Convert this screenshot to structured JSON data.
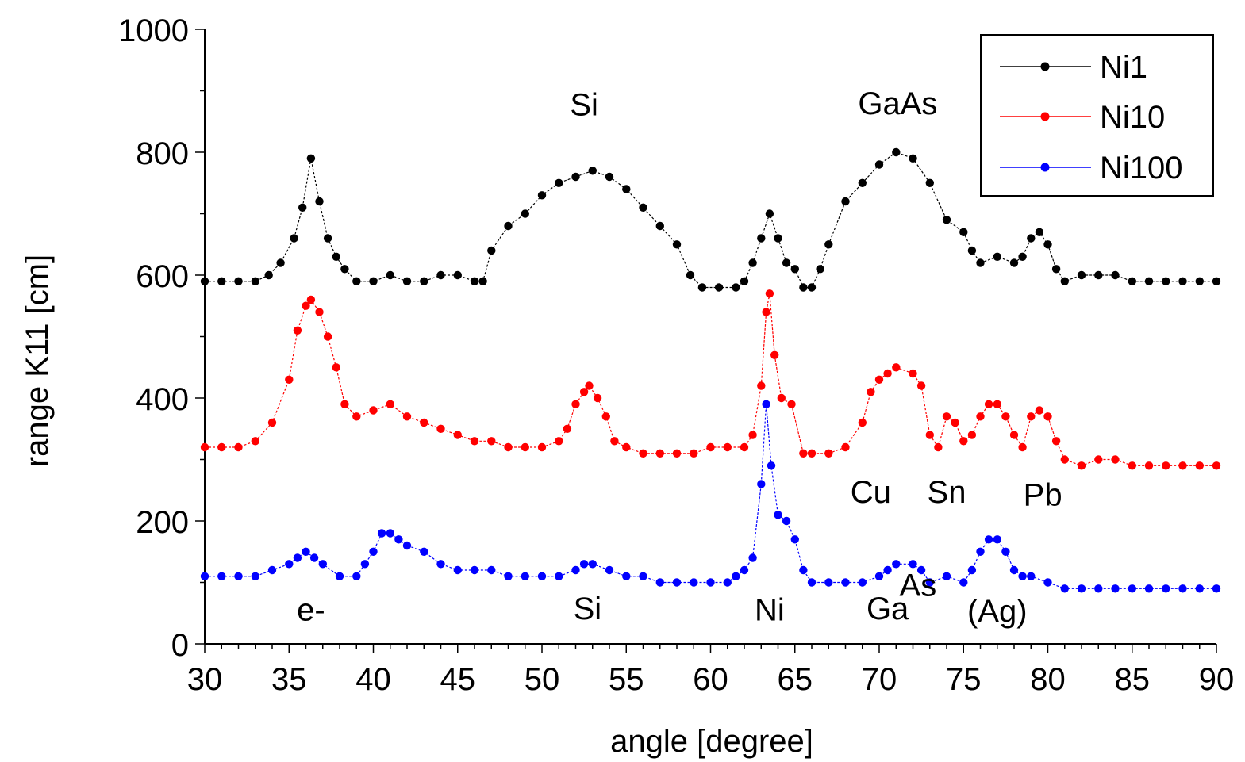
{
  "chart_data": {
    "type": "line",
    "title": "",
    "xlabel": "angle [degree]",
    "ylabel": "range K11 [cm]",
    "xlim": [
      30,
      90
    ],
    "ylim": [
      0,
      1000
    ],
    "xticks": [
      "30",
      "35",
      "40",
      "45",
      "50",
      "55",
      "60",
      "65",
      "70",
      "75",
      "80",
      "85",
      "90"
    ],
    "yticks": [
      "0",
      "200",
      "400",
      "600",
      "800",
      "1000"
    ],
    "grid": false,
    "legend_position": "top-right",
    "series": [
      {
        "name": "Ni1",
        "color": "#000000",
        "points": [
          [
            30,
            590
          ],
          [
            31,
            590
          ],
          [
            32,
            590
          ],
          [
            33,
            590
          ],
          [
            33.8,
            600
          ],
          [
            34.5,
            620
          ],
          [
            35.3,
            660
          ],
          [
            35.8,
            710
          ],
          [
            36.3,
            790
          ],
          [
            36.8,
            720
          ],
          [
            37.3,
            660
          ],
          [
            37.8,
            630
          ],
          [
            38.3,
            610
          ],
          [
            39,
            590
          ],
          [
            40,
            590
          ],
          [
            41,
            600
          ],
          [
            42,
            590
          ],
          [
            43,
            590
          ],
          [
            44,
            600
          ],
          [
            45,
            600
          ],
          [
            46,
            590
          ],
          [
            46.5,
            590
          ],
          [
            47,
            640
          ],
          [
            48,
            680
          ],
          [
            49,
            700
          ],
          [
            50,
            730
          ],
          [
            51,
            750
          ],
          [
            52,
            760
          ],
          [
            53,
            770
          ],
          [
            54,
            760
          ],
          [
            55,
            740
          ],
          [
            56,
            710
          ],
          [
            57,
            680
          ],
          [
            58,
            650
          ],
          [
            58.8,
            600
          ],
          [
            59.5,
            580
          ],
          [
            60.5,
            580
          ],
          [
            61.5,
            580
          ],
          [
            62,
            590
          ],
          [
            62.5,
            620
          ],
          [
            63,
            660
          ],
          [
            63.5,
            700
          ],
          [
            64,
            660
          ],
          [
            64.5,
            620
          ],
          [
            65,
            610
          ],
          [
            65.5,
            580
          ],
          [
            66,
            580
          ],
          [
            66.5,
            610
          ],
          [
            67,
            650
          ],
          [
            68,
            720
          ],
          [
            69,
            750
          ],
          [
            70,
            780
          ],
          [
            71,
            800
          ],
          [
            72,
            790
          ],
          [
            73,
            750
          ],
          [
            74,
            690
          ],
          [
            75,
            670
          ],
          [
            75.5,
            640
          ],
          [
            76,
            620
          ],
          [
            77,
            630
          ],
          [
            78,
            620
          ],
          [
            78.5,
            630
          ],
          [
            79,
            660
          ],
          [
            79.5,
            670
          ],
          [
            80,
            650
          ],
          [
            80.5,
            610
          ],
          [
            81,
            590
          ],
          [
            82,
            600
          ],
          [
            83,
            600
          ],
          [
            84,
            600
          ],
          [
            85,
            590
          ],
          [
            86,
            590
          ],
          [
            87,
            590
          ],
          [
            88,
            590
          ],
          [
            89,
            590
          ],
          [
            90,
            590
          ]
        ]
      },
      {
        "name": "Ni10",
        "color": "#ff0000",
        "points": [
          [
            30,
            320
          ],
          [
            31,
            320
          ],
          [
            32,
            320
          ],
          [
            33,
            330
          ],
          [
            34,
            360
          ],
          [
            35,
            430
          ],
          [
            35.5,
            510
          ],
          [
            36,
            550
          ],
          [
            36.3,
            560
          ],
          [
            36.8,
            540
          ],
          [
            37.3,
            500
          ],
          [
            37.8,
            450
          ],
          [
            38.3,
            390
          ],
          [
            39,
            370
          ],
          [
            40,
            380
          ],
          [
            41,
            390
          ],
          [
            42,
            370
          ],
          [
            43,
            360
          ],
          [
            44,
            350
          ],
          [
            45,
            340
          ],
          [
            46,
            330
          ],
          [
            47,
            330
          ],
          [
            48,
            320
          ],
          [
            49,
            320
          ],
          [
            50,
            320
          ],
          [
            51,
            330
          ],
          [
            51.5,
            350
          ],
          [
            52,
            390
          ],
          [
            52.5,
            410
          ],
          [
            52.8,
            420
          ],
          [
            53.3,
            400
          ],
          [
            53.8,
            370
          ],
          [
            54.3,
            330
          ],
          [
            55,
            320
          ],
          [
            56,
            310
          ],
          [
            57,
            310
          ],
          [
            58,
            310
          ],
          [
            59,
            310
          ],
          [
            60,
            320
          ],
          [
            61,
            320
          ],
          [
            62,
            320
          ],
          [
            62.5,
            340
          ],
          [
            63,
            420
          ],
          [
            63.3,
            540
          ],
          [
            63.5,
            570
          ],
          [
            63.8,
            470
          ],
          [
            64.2,
            400
          ],
          [
            64.8,
            390
          ],
          [
            65.5,
            310
          ],
          [
            66,
            310
          ],
          [
            67,
            310
          ],
          [
            68,
            320
          ],
          [
            69,
            360
          ],
          [
            69.5,
            410
          ],
          [
            70,
            430
          ],
          [
            70.5,
            440
          ],
          [
            71,
            450
          ],
          [
            72,
            440
          ],
          [
            72.5,
            420
          ],
          [
            73,
            340
          ],
          [
            73.5,
            320
          ],
          [
            74,
            370
          ],
          [
            74.5,
            360
          ],
          [
            75,
            330
          ],
          [
            75.5,
            340
          ],
          [
            76,
            370
          ],
          [
            76.5,
            390
          ],
          [
            77,
            390
          ],
          [
            77.5,
            370
          ],
          [
            78,
            340
          ],
          [
            78.5,
            320
          ],
          [
            79,
            370
          ],
          [
            79.5,
            380
          ],
          [
            80,
            370
          ],
          [
            80.5,
            330
          ],
          [
            81,
            300
          ],
          [
            82,
            290
          ],
          [
            83,
            300
          ],
          [
            84,
            300
          ],
          [
            85,
            290
          ],
          [
            86,
            290
          ],
          [
            87,
            290
          ],
          [
            88,
            290
          ],
          [
            89,
            290
          ],
          [
            90,
            290
          ]
        ]
      },
      {
        "name": "Ni100",
        "color": "#0000ff",
        "points": [
          [
            30,
            110
          ],
          [
            31,
            110
          ],
          [
            32,
            110
          ],
          [
            33,
            110
          ],
          [
            34,
            120
          ],
          [
            35,
            130
          ],
          [
            35.5,
            140
          ],
          [
            36,
            150
          ],
          [
            36.5,
            140
          ],
          [
            37,
            130
          ],
          [
            38,
            110
          ],
          [
            39,
            110
          ],
          [
            39.5,
            130
          ],
          [
            40,
            150
          ],
          [
            40.5,
            180
          ],
          [
            41,
            180
          ],
          [
            41.5,
            170
          ],
          [
            42,
            160
          ],
          [
            43,
            150
          ],
          [
            44,
            130
          ],
          [
            45,
            120
          ],
          [
            46,
            120
          ],
          [
            47,
            120
          ],
          [
            48,
            110
          ],
          [
            49,
            110
          ],
          [
            50,
            110
          ],
          [
            51,
            110
          ],
          [
            52,
            120
          ],
          [
            52.5,
            130
          ],
          [
            53,
            130
          ],
          [
            54,
            120
          ],
          [
            55,
            110
          ],
          [
            56,
            110
          ],
          [
            57,
            100
          ],
          [
            58,
            100
          ],
          [
            59,
            100
          ],
          [
            60,
            100
          ],
          [
            61,
            100
          ],
          [
            61.5,
            110
          ],
          [
            62,
            120
          ],
          [
            62.5,
            140
          ],
          [
            63,
            260
          ],
          [
            63.3,
            390
          ],
          [
            63.6,
            290
          ],
          [
            64,
            210
          ],
          [
            64.5,
            200
          ],
          [
            65,
            170
          ],
          [
            65.5,
            120
          ],
          [
            66,
            100
          ],
          [
            67,
            100
          ],
          [
            68,
            100
          ],
          [
            69,
            100
          ],
          [
            70,
            110
          ],
          [
            70.5,
            120
          ],
          [
            71,
            130
          ],
          [
            72,
            130
          ],
          [
            72.5,
            120
          ],
          [
            73,
            100
          ],
          [
            74,
            110
          ],
          [
            75,
            100
          ],
          [
            75.5,
            120
          ],
          [
            76,
            150
          ],
          [
            76.5,
            170
          ],
          [
            77,
            170
          ],
          [
            77.5,
            150
          ],
          [
            78,
            120
          ],
          [
            78.5,
            110
          ],
          [
            79,
            110
          ],
          [
            80,
            100
          ],
          [
            81,
            90
          ],
          [
            82,
            90
          ],
          [
            83,
            90
          ],
          [
            84,
            90
          ],
          [
            85,
            90
          ],
          [
            86,
            90
          ],
          [
            87,
            90
          ],
          [
            88,
            90
          ],
          [
            89,
            90
          ],
          [
            90,
            90
          ]
        ]
      }
    ],
    "annotations": [
      {
        "text": "Si",
        "x": 52.5,
        "y": 860
      },
      {
        "text": "GaAs",
        "x": 71.1,
        "y": 862
      },
      {
        "text": "Cu",
        "x": 69.5,
        "y": 230
      },
      {
        "text": "Sn",
        "x": 74,
        "y": 230
      },
      {
        "text": "Pb",
        "x": 79.7,
        "y": 225
      },
      {
        "text": "e-",
        "x": 36.3,
        "y": 38
      },
      {
        "text": "Si",
        "x": 52.7,
        "y": 40
      },
      {
        "text": "Ni",
        "x": 63.5,
        "y": 38
      },
      {
        "text": "Ga",
        "x": 70.5,
        "y": 40
      },
      {
        "text": "As",
        "x": 72.3,
        "y": 78
      },
      {
        "text": "(Ag)",
        "x": 77,
        "y": 36
      }
    ]
  }
}
